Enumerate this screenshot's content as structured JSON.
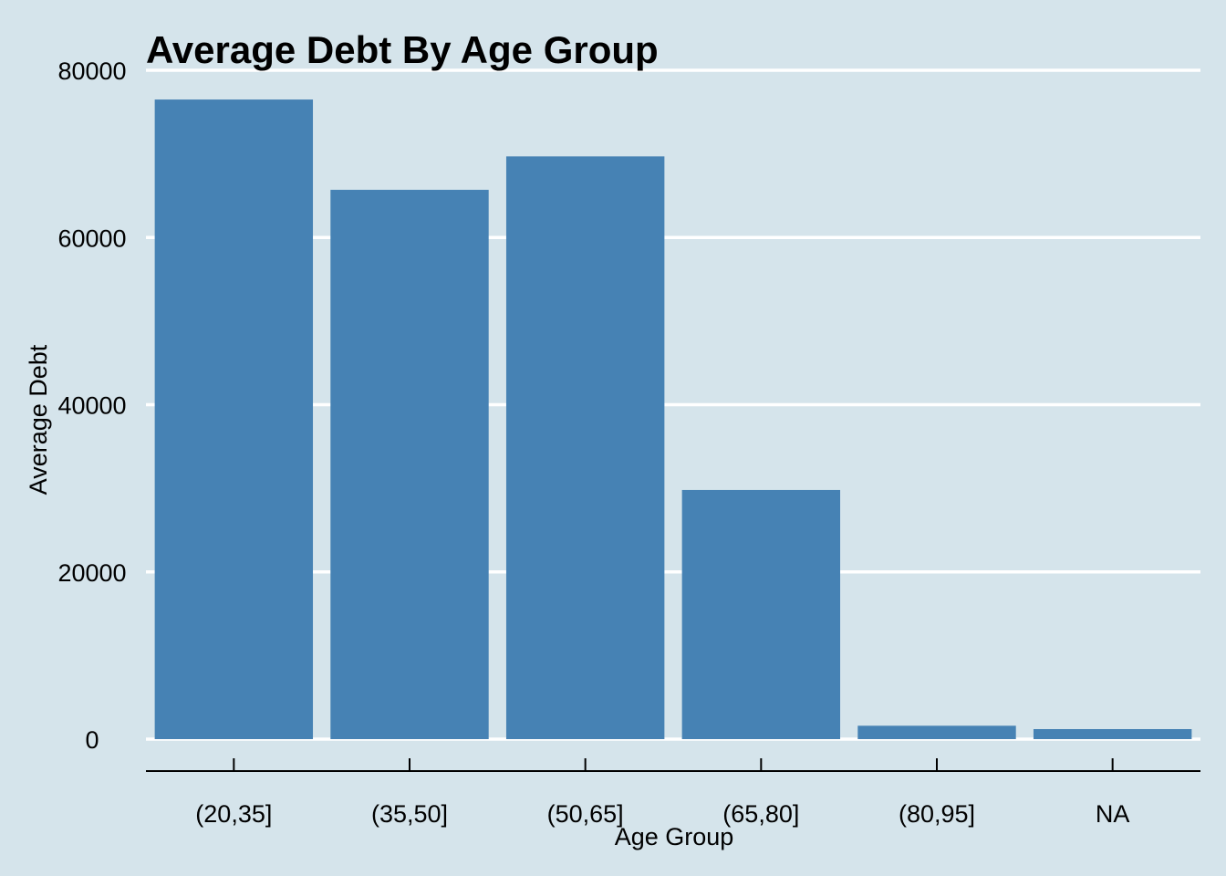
{
  "chart_data": {
    "type": "bar",
    "title": "Average Debt By Age Group",
    "xlabel": "Age Group",
    "ylabel": "Average Debt",
    "categories": [
      "(20,35]",
      "(35,50]",
      "(50,65]",
      "(65,80]",
      "(80,95]",
      "NA"
    ],
    "values": [
      76500,
      65700,
      69700,
      29800,
      1600,
      1200
    ],
    "ylim": [
      0,
      80000
    ],
    "yticks": [
      0,
      20000,
      40000,
      60000,
      80000
    ],
    "ytick_labels": [
      "0",
      "20000",
      "40000",
      "60000",
      "80000"
    ],
    "grid": "horizontal-major",
    "legend": "none",
    "colors": {
      "bar": "#4682b4",
      "background": "#d5e4eb",
      "grid": "#ffffff",
      "axis": "#000000"
    }
  }
}
